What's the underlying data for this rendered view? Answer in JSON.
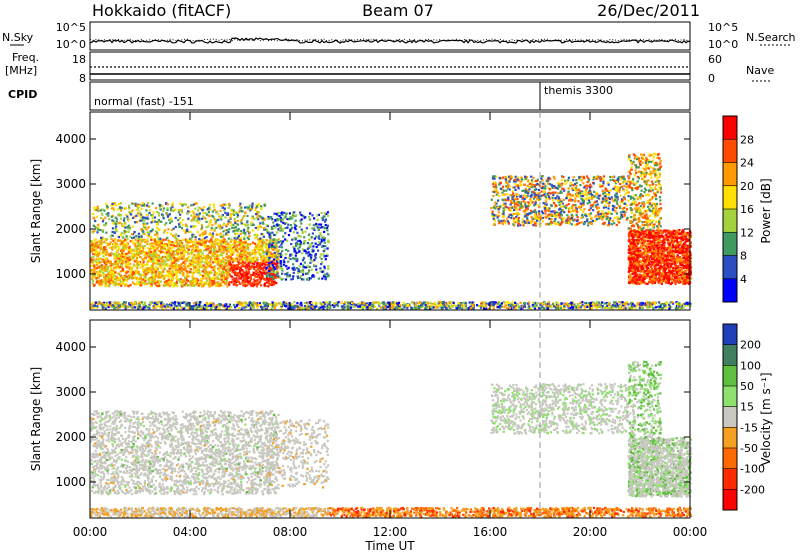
{
  "header": {
    "station": "Hokkaido (fitACF)",
    "beam": "Beam 07",
    "date": "26/Dec/2011"
  },
  "top_panels": {
    "nsky_label": "N.Sky",
    "nsky_ticks": [
      "10^5",
      "10^0"
    ],
    "nsearch_label": "N.Search",
    "nsearch_ticks": [
      "10^5",
      "10^0"
    ],
    "freq_label_1": "Freq.",
    "freq_label_2": "[MHz]",
    "freq_ticks": [
      "18",
      "8"
    ],
    "nave_label": "Nave",
    "nave_ticks": [
      "60",
      "0"
    ],
    "cpid_label": "CPID",
    "cpid_segments": [
      {
        "label": "normal (fast) -151",
        "start_hour": 0
      },
      {
        "label": "themis 3300",
        "start_hour": 18
      }
    ]
  },
  "chart_data": [
    {
      "type": "heatmap",
      "name": "power-panel",
      "ylabel": "Slant Range [km]",
      "xlabel": "",
      "y_ticks": [
        1000,
        2000,
        3000,
        4000
      ],
      "ylim": [
        200,
        4600
      ],
      "xlim_hours": [
        0,
        24
      ],
      "colorbar_label": "Power [dB]",
      "colorbar_ticks": [
        "28",
        "24",
        "20",
        "16",
        "12",
        "8",
        "4"
      ],
      "colorbar_colors": [
        "#ff0000",
        "#ff4a00",
        "#ff9a00",
        "#ffe000",
        "#a5d23c",
        "#3f9a5f",
        "#2b4fc3",
        "#0000ff"
      ]
    },
    {
      "type": "heatmap",
      "name": "velocity-panel",
      "ylabel": "Slant Range [km]",
      "xlabel": "Time UT",
      "y_ticks": [
        1000,
        2000,
        3000,
        4000
      ],
      "ylim": [
        200,
        4600
      ],
      "xlim_hours": [
        0,
        24
      ],
      "x_ticks": [
        "00:00",
        "04:00",
        "08:00",
        "12:00",
        "16:00",
        "20:00",
        "00:00"
      ],
      "colorbar_label": "Velocity [m s⁻¹]",
      "colorbar_ticks": [
        "200",
        "100",
        "50",
        "15",
        "-15",
        "-50",
        "-100",
        "-200"
      ],
      "colorbar_colors": [
        "#1f3fb8",
        "#3f7f5f",
        "#5fbf3f",
        "#8ee06f",
        "#c8c8c0",
        "#f5a020",
        "#ff6a00",
        "#ff2a00",
        "#ff0000"
      ]
    }
  ]
}
